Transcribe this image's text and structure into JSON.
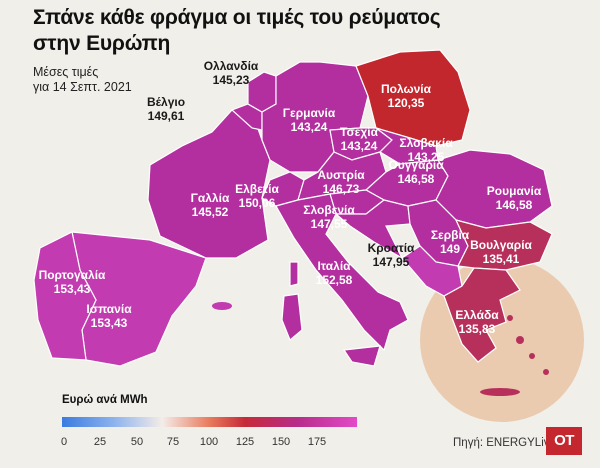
{
  "header": {
    "title_line1": "Σπάνε κάθε φράγμα οι τιμές του ρεύματος",
    "title_line2": "στην Ευρώπη",
    "subtitle_line1": "Μέσες τιμές",
    "subtitle_line2": "για 14 Σεπτ. 2021"
  },
  "countries": {
    "netherlands": {
      "name": "Ολλανδία",
      "value": "145,23"
    },
    "belgium": {
      "name": "Βέλγιο",
      "value": "149,61"
    },
    "germany": {
      "name": "Γερμανία",
      "value": "143,24"
    },
    "poland": {
      "name": "Πολωνία",
      "value": "120,35"
    },
    "czechia": {
      "name": "Τσεχία",
      "value": "143,24"
    },
    "slovakia": {
      "name": "Σλοβακία",
      "value": "143,25"
    },
    "france": {
      "name": "Γαλλία",
      "value": "145,52"
    },
    "switzerland": {
      "name": "Ελβετία",
      "value": "150,06"
    },
    "austria": {
      "name": "Αυστρία",
      "value": "146,73"
    },
    "hungary": {
      "name": "Ουγγαρία",
      "value": "146,58"
    },
    "romania": {
      "name": "Ρουμανία",
      "value": "146,58"
    },
    "slovenia": {
      "name": "Σλοβενία",
      "value": "147,55"
    },
    "croatia": {
      "name": "Κροατία",
      "value": "147,95"
    },
    "serbia": {
      "name": "Σερβία",
      "value": "149"
    },
    "bulgaria": {
      "name": "Βουλγαρία",
      "value": "135,41"
    },
    "portugal": {
      "name": "Πορτογαλία",
      "value": "153,43"
    },
    "spain": {
      "name": "Ισπανία",
      "value": "153,43"
    },
    "italy": {
      "name": "Ιταλία",
      "value": "152,58"
    },
    "greece": {
      "name": "Ελλάδα",
      "value": "135,83"
    }
  },
  "legend": {
    "title": "Ευρώ ανά MWh",
    "ticks": [
      "0",
      "25",
      "50",
      "75",
      "100",
      "125",
      "150",
      "175"
    ],
    "scale_min": 0,
    "scale_max": 200
  },
  "footer": {
    "source": "Πηγή: ENERGYLive",
    "logo": "OT"
  },
  "colors": {
    "background": "#f1efe9",
    "main_magenta": "#b32e9e",
    "light_magenta": "#c23bb0",
    "poland_red": "#c2272d",
    "bulgaria_crimson": "#b7305c",
    "greece_circle": "#e9c6a8",
    "logo_red": "#c5272f"
  }
}
